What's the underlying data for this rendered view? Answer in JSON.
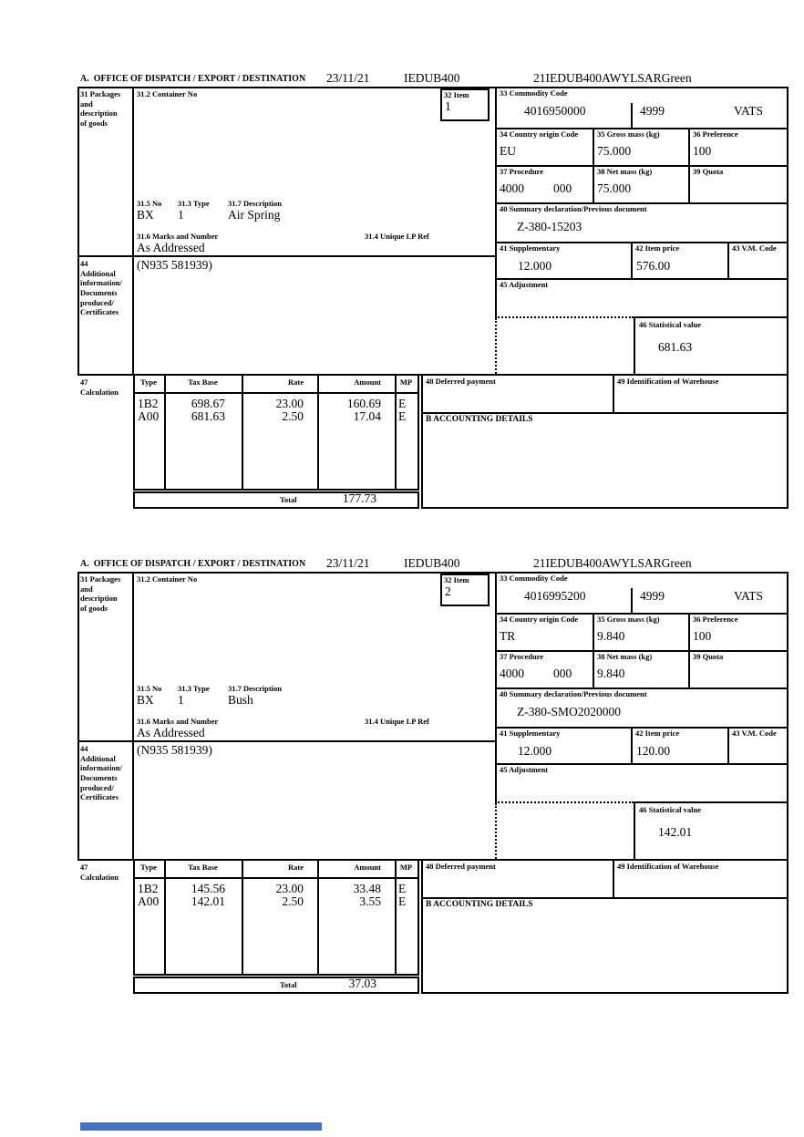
{
  "header": {
    "office_of_dispatch_label": "A.  OFFICE OF DISPATCH / EXPORT / DESTINATION",
    "date": "23/11/21",
    "office_code": "IEDUB400",
    "reference": "21IEDUB400AWYLSARGreen"
  },
  "labels": {
    "box31": "31 Packages\nand\ndescription\nof goods",
    "box31_2": "31.2 Container No",
    "box32": "32 Item",
    "box33": "33 Commodity Code",
    "box34": "34 Country origin Code",
    "box35": "35 Gross mass (kg)",
    "box36": "36 Preference",
    "box37": "37 Procedure",
    "box38": "38 Net mass (kg)",
    "box39": "39 Quota",
    "box31_5": "31.5 No",
    "box31_3": "31.3 Type",
    "box31_7": "31.7 Description",
    "box31_6": "31.6 Marks and Number",
    "box31_4": "31.4 Unique LP Ref",
    "box40": "40 Summary declaration/Previous document",
    "box41": "41 Supplementary",
    "box42": "42 Item price",
    "box43": "43 V.M. Code",
    "box44": "44\nAdditional\ninformation/\nDocuments\nproduced/\nCertificates",
    "box45": "45 Adjustment",
    "box46": "46 Statistical value",
    "box47": "47\nCalculation",
    "box48": "48 Deferred payment",
    "box49": "49 Identification of Warehouse",
    "boxB": "B ACCOUNTING DETAILS",
    "col_type": "Type",
    "col_tax_base": "Tax Base",
    "col_rate": "Rate",
    "col_amount": "Amount",
    "col_mp": "MP",
    "total": "Total"
  },
  "accent_bar": {
    "color": "#4472c4"
  },
  "items": [
    {
      "item_no": "1",
      "commodity_code": "4016950000",
      "commodity_code2": "4999",
      "tax_flag": "VATS",
      "origin_country": "EU",
      "gross_mass": "75.000",
      "preference": "100",
      "procedure": "4000",
      "procedure2": "000",
      "net_mass": "75.000",
      "quota": "",
      "previous_document": "Z-380-15203",
      "supplementary": "12.000",
      "item_price": "576.00",
      "vm_code": "",
      "statistical_value": "681.63",
      "package_no": "BX",
      "package_type": "1",
      "description": "Air Spring",
      "marks_and_number": "As Addressed",
      "unique_lp_ref": "",
      "container_no": "",
      "additional_info": "(N935 581939)",
      "rows": [
        {
          "type": "1B2",
          "base": "698.67",
          "rate": "23.00",
          "amount": "160.69",
          "mp": "E"
        },
        {
          "type": "A00",
          "base": "681.63",
          "rate": "2.50",
          "amount": "17.04",
          "mp": "E"
        }
      ],
      "total": "177.73"
    },
    {
      "item_no": "2",
      "commodity_code": "4016995200",
      "commodity_code2": "4999",
      "tax_flag": "VATS",
      "origin_country": "TR",
      "gross_mass": "9.840",
      "preference": "100",
      "procedure": "4000",
      "procedure2": "000",
      "net_mass": "9.840",
      "quota": "",
      "previous_document": "Z-380-SMO2020000",
      "supplementary": "12.000",
      "item_price": "120.00",
      "vm_code": "",
      "statistical_value": "142.01",
      "package_no": "BX",
      "package_type": "1",
      "description": "Bush",
      "marks_and_number": "As Addressed",
      "unique_lp_ref": "",
      "container_no": "",
      "additional_info": "(N935 581939)",
      "rows": [
        {
          "type": "1B2",
          "base": "145.56",
          "rate": "23.00",
          "amount": "33.48",
          "mp": "E"
        },
        {
          "type": "A00",
          "base": "142.01",
          "rate": "2.50",
          "amount": "3.55",
          "mp": "E"
        }
      ],
      "total": "37.03"
    }
  ]
}
